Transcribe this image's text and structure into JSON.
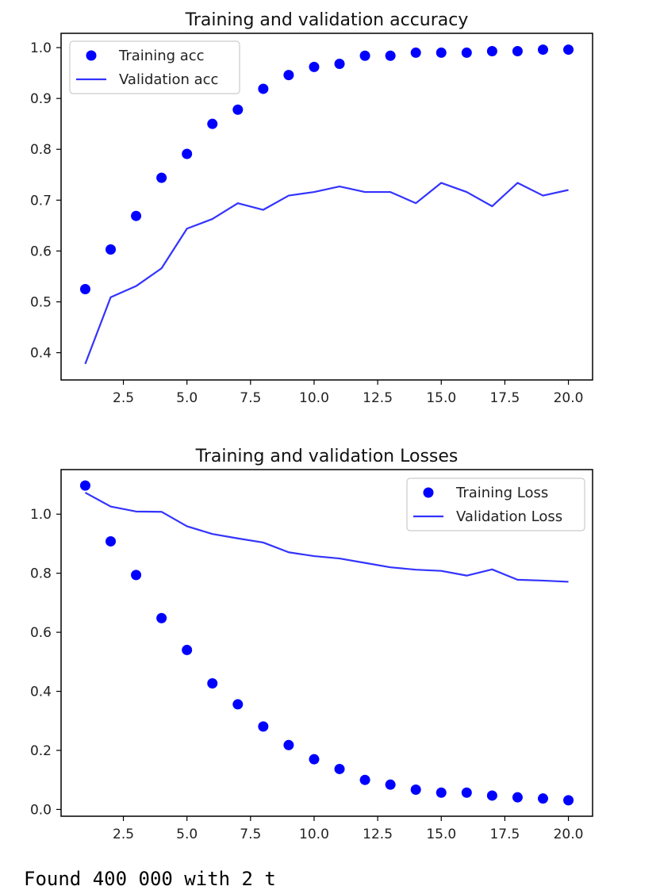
{
  "chart_data": [
    {
      "type": "line",
      "title": "Training and validation accuracy",
      "xlabel": "",
      "ylabel": "",
      "xlim": [
        0.05,
        20.95
      ],
      "ylim": [
        0.3464,
        1.0281
      ],
      "xticks": [
        2.5,
        5.0,
        7.5,
        10.0,
        12.5,
        15.0,
        17.5,
        20.0
      ],
      "xtick_labels": [
        "2.5",
        "5.0",
        "7.5",
        "10.0",
        "12.5",
        "15.0",
        "17.5",
        "20.0"
      ],
      "yticks": [
        0.4,
        0.5,
        0.6,
        0.7,
        0.8,
        0.9,
        1.0
      ],
      "ytick_labels": [
        "0.4",
        "0.5",
        "0.6",
        "0.7",
        "0.8",
        "0.9",
        "1.0"
      ],
      "grid": false,
      "legend_position": "upper-left",
      "x": [
        1,
        2,
        3,
        4,
        5,
        6,
        7,
        8,
        9,
        10,
        11,
        12,
        13,
        14,
        15,
        16,
        17,
        18,
        19,
        20
      ],
      "series": [
        {
          "name": "Training acc",
          "style": "dots",
          "color": "#0000ff",
          "values": [
            0.525,
            0.603,
            0.669,
            0.744,
            0.791,
            0.85,
            0.878,
            0.919,
            0.946,
            0.962,
            0.968,
            0.984,
            0.984,
            0.99,
            0.99,
            0.99,
            0.993,
            0.993,
            0.996,
            0.996
          ]
        },
        {
          "name": "Validation acc",
          "style": "line",
          "color": "#3333ff",
          "values": [
            0.378,
            0.509,
            0.531,
            0.566,
            0.644,
            0.663,
            0.694,
            0.681,
            0.709,
            0.716,
            0.727,
            0.716,
            0.716,
            0.694,
            0.734,
            0.716,
            0.688,
            0.734,
            0.709,
            0.72
          ]
        }
      ]
    },
    {
      "type": "line",
      "title": "Training and validation Losses",
      "xlabel": "",
      "ylabel": "",
      "xlim": [
        0.05,
        20.95
      ],
      "ylim": [
        -0.023,
        1.151
      ],
      "xticks": [
        2.5,
        5.0,
        7.5,
        10.0,
        12.5,
        15.0,
        17.5,
        20.0
      ],
      "xtick_labels": [
        "2.5",
        "5.0",
        "7.5",
        "10.0",
        "12.5",
        "15.0",
        "17.5",
        "20.0"
      ],
      "yticks": [
        0.0,
        0.2,
        0.4,
        0.6,
        0.8,
        1.0
      ],
      "ytick_labels": [
        "0.0",
        "0.2",
        "0.4",
        "0.6",
        "0.8",
        "1.0"
      ],
      "grid": false,
      "legend_position": "upper-right",
      "x": [
        1,
        2,
        3,
        4,
        5,
        6,
        7,
        8,
        9,
        10,
        11,
        12,
        13,
        14,
        15,
        16,
        17,
        18,
        19,
        20
      ],
      "series": [
        {
          "name": "Training Loss",
          "style": "dots",
          "color": "#0000ff",
          "values": [
            1.097,
            0.908,
            0.794,
            0.648,
            0.54,
            0.427,
            0.356,
            0.281,
            0.218,
            0.17,
            0.137,
            0.1,
            0.084,
            0.067,
            0.057,
            0.057,
            0.047,
            0.041,
            0.037,
            0.031
          ]
        },
        {
          "name": "Validation Loss",
          "style": "line",
          "color": "#3333ff",
          "values": [
            1.073,
            1.026,
            1.009,
            1.008,
            0.959,
            0.933,
            0.918,
            0.904,
            0.871,
            0.858,
            0.85,
            0.835,
            0.82,
            0.812,
            0.808,
            0.792,
            0.813,
            0.778,
            0.775,
            0.771
          ]
        }
      ]
    }
  ],
  "footer": {
    "partial_text": "Found 400 000 with 2 t"
  }
}
